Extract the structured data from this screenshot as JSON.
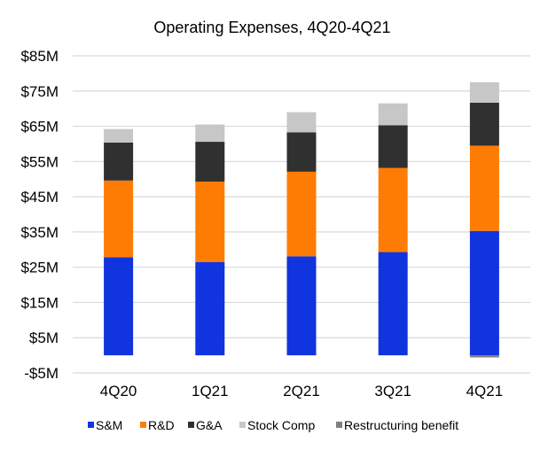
{
  "chart_data": {
    "type": "bar",
    "stacked": true,
    "title": "Operating Expenses, 4Q20-4Q21",
    "xlabel": "",
    "ylabel": "",
    "ylim": [
      -5,
      85
    ],
    "y_ticks": [
      85,
      75,
      65,
      55,
      45,
      35,
      25,
      15,
      5,
      -5
    ],
    "y_tick_labels": [
      "$85M",
      "$75M",
      "$65M",
      "$55M",
      "$45M",
      "$35M",
      "$25M",
      "$15M",
      "$5M",
      "-$5M"
    ],
    "grid": true,
    "legend_position": "bottom",
    "categories": [
      "4Q20",
      "1Q21",
      "2Q21",
      "3Q21",
      "4Q21"
    ],
    "series": [
      {
        "name": "S&M",
        "color": "#1034de",
        "values": [
          27.8,
          26.5,
          28.1,
          29.3,
          35.3
        ]
      },
      {
        "name": "R&D",
        "color": "#ff7c04",
        "values": [
          21.8,
          22.8,
          24.0,
          23.9,
          24.2
        ]
      },
      {
        "name": "G&A",
        "color": "#303030",
        "values": [
          10.8,
          11.3,
          11.2,
          12.1,
          12.2
        ]
      },
      {
        "name": "Stock Comp",
        "color": "#c7c7c7",
        "values": [
          3.8,
          4.9,
          5.7,
          6.2,
          5.8
        ]
      },
      {
        "name": "Restructuring benefit",
        "color": "#7f7f7f",
        "values": [
          0,
          0,
          0,
          0,
          -0.6
        ]
      }
    ]
  }
}
